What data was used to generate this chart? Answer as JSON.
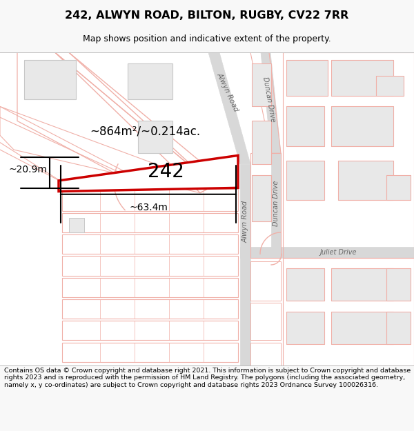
{
  "title": "242, ALWYN ROAD, BILTON, RUGBY, CV22 7RR",
  "subtitle": "Map shows position and indicative extent of the property.",
  "footer": "Contains OS data © Crown copyright and database right 2021. This information is subject to Crown copyright and database rights 2023 and is reproduced with the permission of HM Land Registry. The polygons (including the associated geometry, namely x, y co-ordinates) are subject to Crown copyright and database rights 2023 Ordnance Survey 100026316.",
  "property_label": "242",
  "area_label": "~864m²/~0.214ac.",
  "width_label": "~63.4m",
  "height_label": "~20.9m",
  "road_label_alwyn_top": "Alwyn Road",
  "road_label_alwyn_bot": "Alwyn Road",
  "road_label_duncan_top": "Duncan Drive",
  "road_label_duncan_bot": "Duncan Drive",
  "road_label_juliet": "Juliet Drive",
  "highlight_color": "#cc0000",
  "pink": "#f0b0a8",
  "bldg_fill": "#e8e8e8",
  "bldg_edge": "#c8c8c8",
  "road_gray": "#d8d8d8",
  "bg": "#ffffff"
}
